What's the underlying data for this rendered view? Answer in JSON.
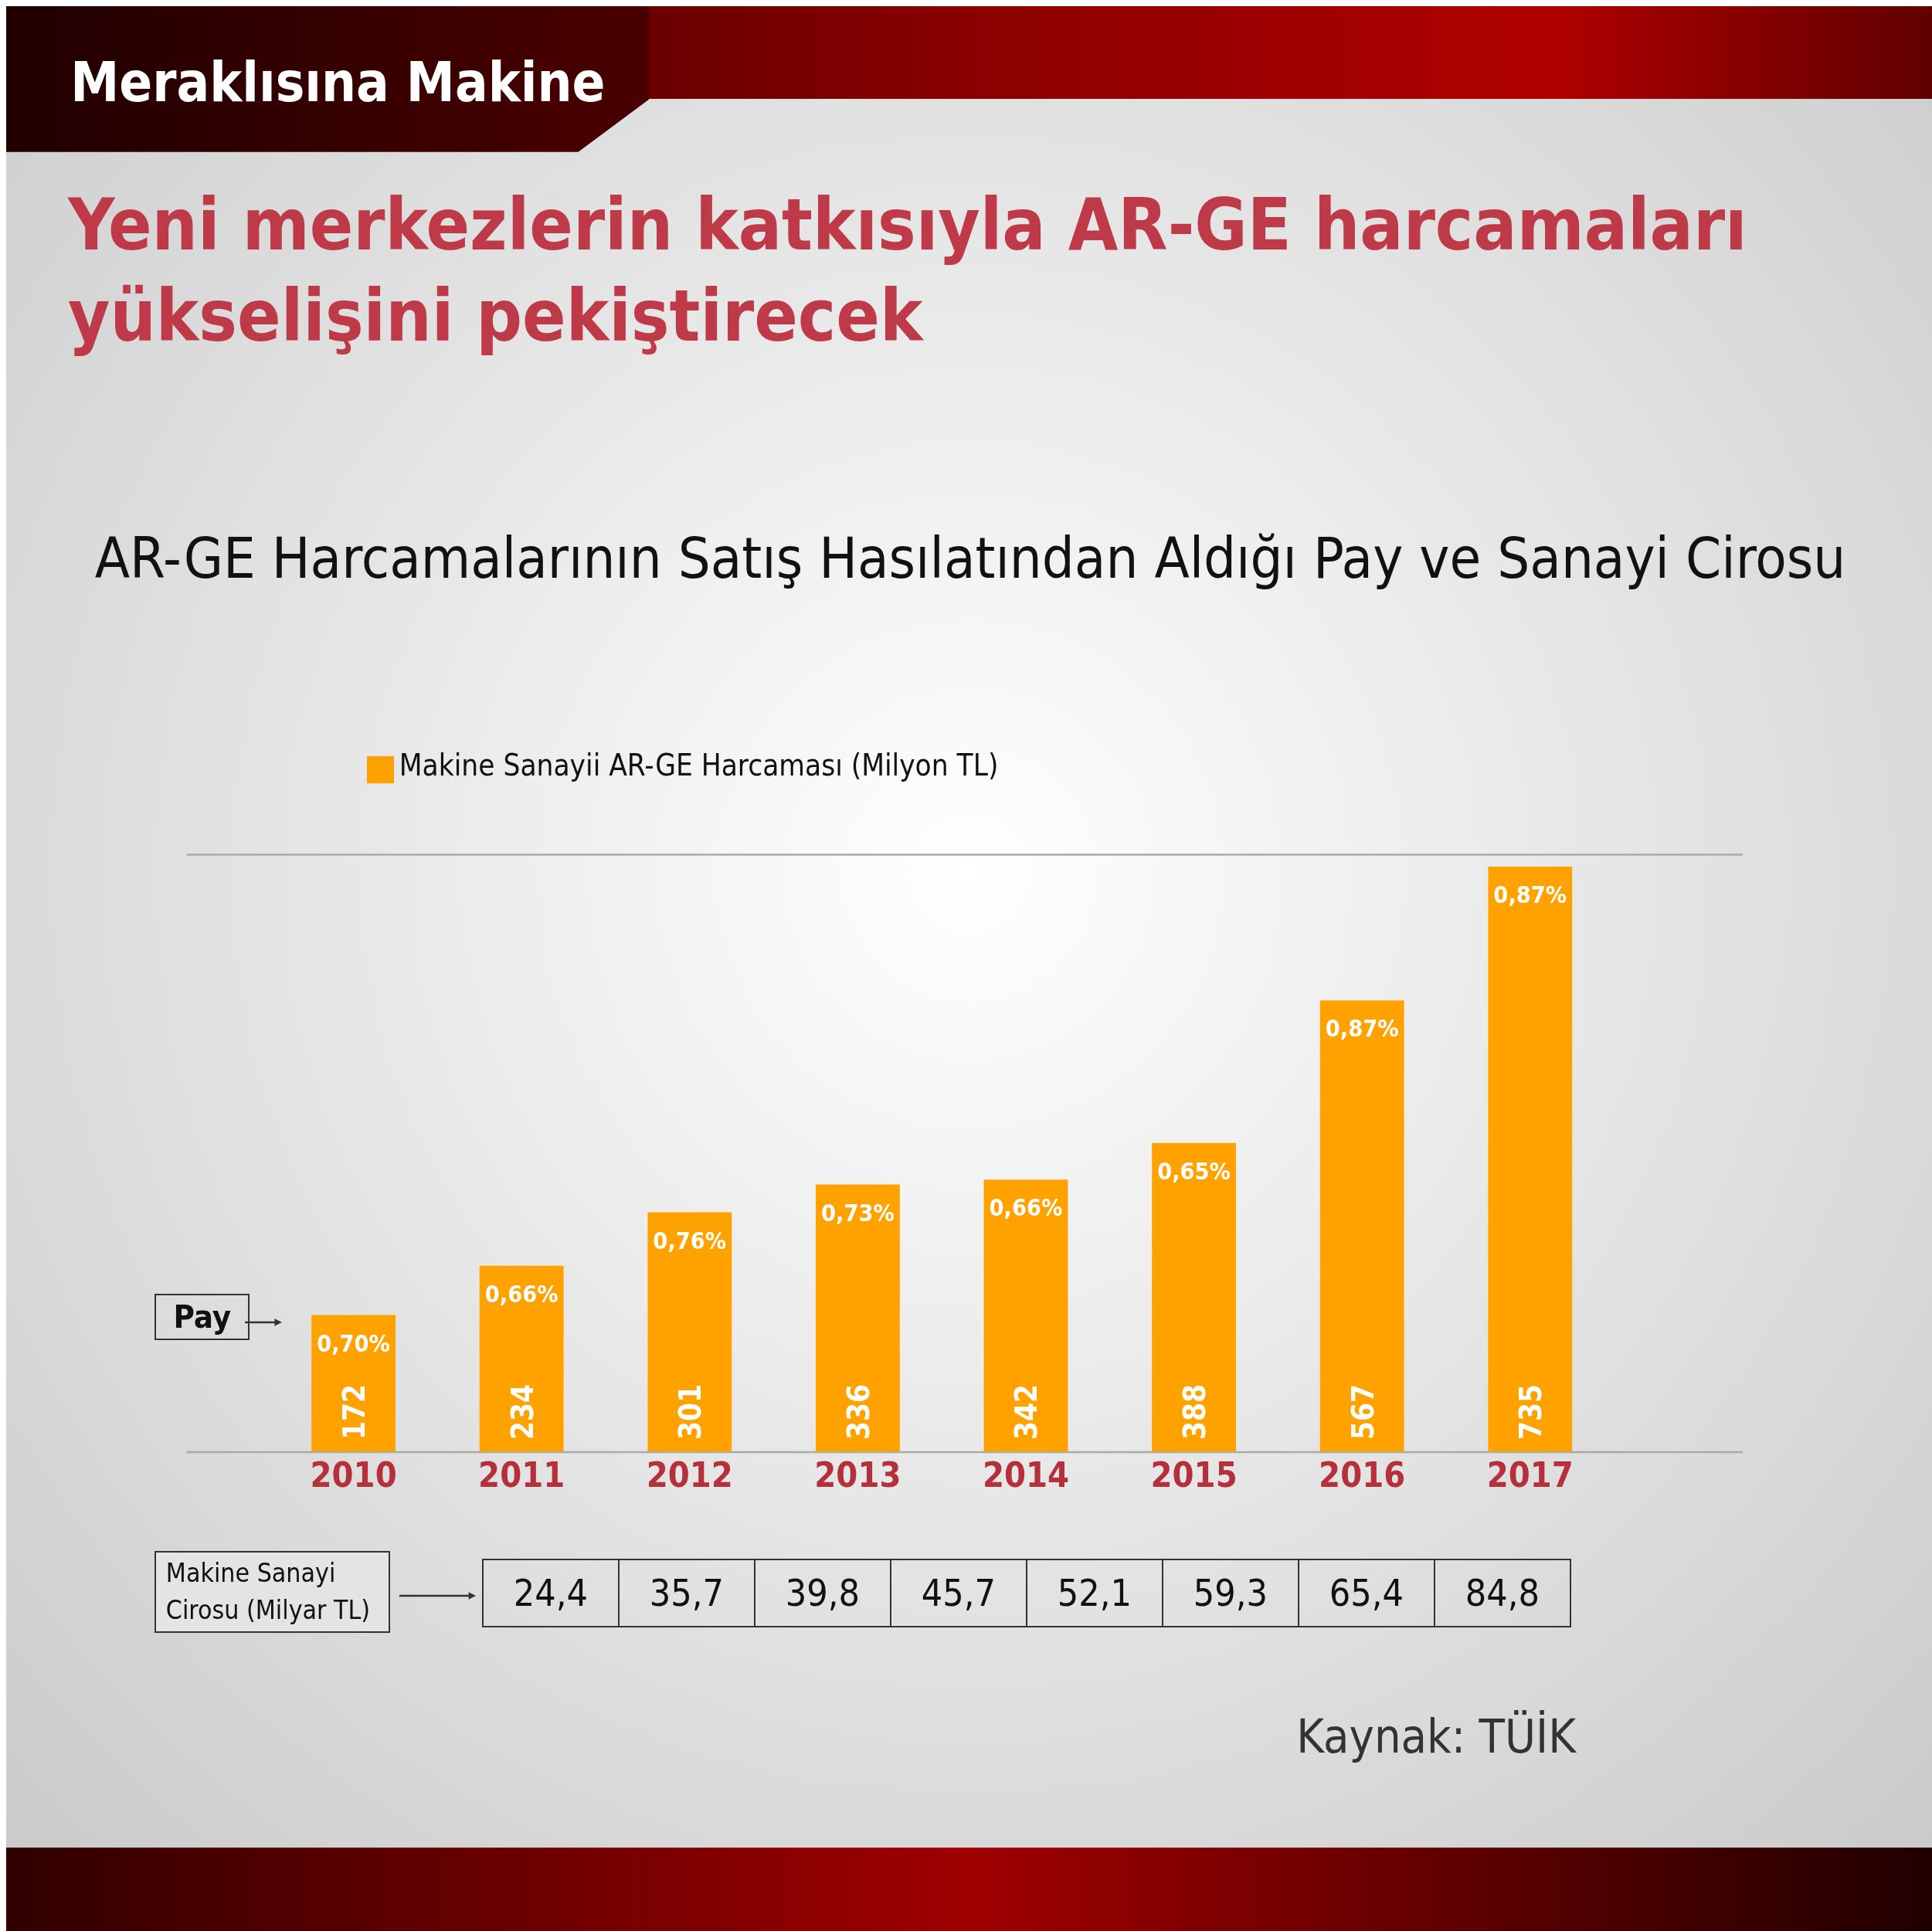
{
  "chart_data": {
    "type": "bar",
    "title": "Yeni merkezlerin katkısıyla AR-GE harcamaları yükselişini pekiştirecek",
    "subtitle": "AR-GE Harcamalarının Satış Hasılatından Aldığı Pay ve Sanayi Cirosu",
    "categories": [
      "2010",
      "2011",
      "2012",
      "2013",
      "2014",
      "2015",
      "2016",
      "2017"
    ],
    "series": [
      {
        "name": "Makine Sanayii AR-GE Harcaması (Milyon TL)",
        "color": "#ffa200",
        "values": [
          172,
          234,
          301,
          336,
          342,
          388,
          567,
          735
        ]
      }
    ],
    "ylim": [
      0,
      750
    ],
    "tick_labels": "x",
    "grid": "y",
    "legend": "top left",
    "data_labels": true,
    "annotations": [
      "Meraklısına Makine",
      "Pay",
      "Makine Sanayi Cirosu (Milyar TL)",
      "Kaynak: TÜİK",
      {
        "text": "0,70%",
        "x": "2010",
        "y": 172
      },
      {
        "text": "0,66%",
        "x": "2011",
        "y": 234
      },
      {
        "text": "0,76%",
        "x": "2012",
        "y": 301
      },
      {
        "text": "0,73%",
        "x": "2013",
        "y": 336
      },
      {
        "text": "0,66%",
        "x": "2014",
        "y": 342
      },
      {
        "text": "0,65%",
        "x": "2015",
        "y": 388
      },
      {
        "text": "0,87%",
        "x": "2016",
        "y": 567
      },
      {
        "text": "0,87%",
        "x": "2017",
        "y": 735
      },
      "24,4",
      "35,7",
      "39,8",
      "45,7",
      "52,1",
      "59,3",
      "65,4",
      "84,8"
    ]
  }
}
